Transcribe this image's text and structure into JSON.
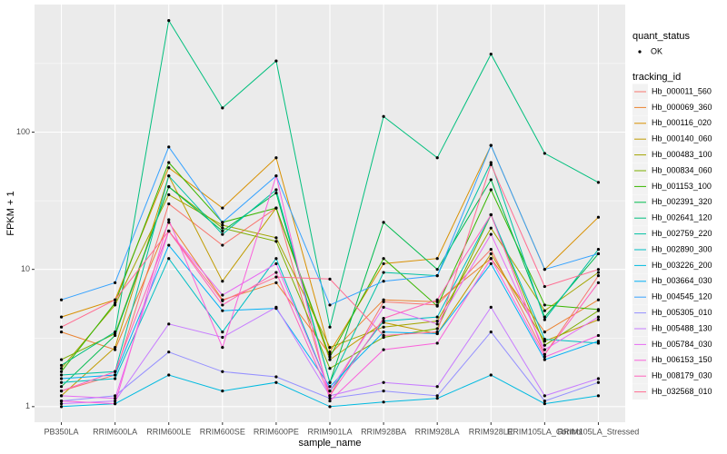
{
  "chart_data": {
    "type": "line",
    "x_label": "sample_name",
    "y_label": "FPKM + 1",
    "log_y": true,
    "grid": true,
    "legend_position": "right",
    "point_color": "#000000",
    "shape_legend": {
      "title": "quant_status",
      "labels": [
        "OK"
      ]
    },
    "color_legend_title": "tracking_id",
    "categories": [
      "PB350LA",
      "RRIM600LA",
      "RRIM600LE",
      "RRIM600SE",
      "RRIM600PE",
      "RRIM901LA",
      "RRIM928BA",
      "RRIM928LA",
      "RRIM928LE",
      "RRIM105LA_Control",
      "RRIM105LA_Stressed"
    ],
    "ylim": [
      0.77,
      850
    ],
    "yticks": [
      1,
      10,
      100
    ],
    "minor_yticks": [
      3.162,
      31.62,
      316.2
    ],
    "series": [
      {
        "name": "Hb_000011_560",
        "color": "#F8766D",
        "values": [
          1.3,
          1.7,
          30,
          15,
          28,
          1.2,
          5.8,
          5.5,
          14,
          2.4,
          9
        ]
      },
      {
        "name": "Hb_000069_360",
        "color": "#EA8331",
        "values": [
          3.5,
          2.6,
          22,
          6,
          8,
          2.4,
          6,
          5.8,
          12,
          3.5,
          6
        ]
      },
      {
        "name": "Hb_000116_020",
        "color": "#D89000",
        "values": [
          4.5,
          6,
          55,
          28,
          65,
          2.5,
          11,
          12,
          80,
          10,
          24
        ]
      },
      {
        "name": "Hb_000140_060",
        "color": "#C09B00",
        "values": [
          1.2,
          2.7,
          48,
          8.2,
          28,
          2.2,
          4.1,
          3.4,
          13,
          3,
          4.3
        ]
      },
      {
        "name": "Hb_000483_100",
        "color": "#A3A500",
        "values": [
          1.9,
          5.5,
          35,
          21,
          17,
          2.7,
          3.8,
          4.2,
          20,
          5,
          9.5
        ]
      },
      {
        "name": "Hb_000834_060",
        "color": "#7CAE00",
        "values": [
          2.2,
          3.4,
          40,
          20,
          16,
          1.9,
          3.2,
          3.7,
          25,
          2.8,
          5
        ]
      },
      {
        "name": "Hb_001153_100",
        "color": "#39B600",
        "values": [
          1.8,
          5.7,
          60,
          22,
          28,
          2.3,
          12,
          5.4,
          38,
          5.5,
          5.1
        ]
      },
      {
        "name": "Hb_002391_320",
        "color": "#00BB4E",
        "values": [
          1.4,
          3.3,
          40,
          19,
          36,
          1.5,
          22,
          10,
          45,
          4.5,
          13
        ]
      },
      {
        "name": "Hb_002641_120",
        "color": "#00BF7D",
        "values": [
          2,
          3.5,
          650,
          150,
          330,
          3.8,
          130,
          65,
          370,
          70,
          43
        ]
      },
      {
        "name": "Hb_002759_220",
        "color": "#00C1A3",
        "values": [
          1.7,
          1.8,
          48,
          18,
          38,
          1.5,
          9.5,
          9,
          60,
          4.3,
          14
        ]
      },
      {
        "name": "Hb_002890_300",
        "color": "#00BFC4",
        "values": [
          1.5,
          1.6,
          12,
          3.5,
          12,
          1.3,
          4.2,
          4.5,
          25,
          3.1,
          2.9
        ]
      },
      {
        "name": "Hb_003226_200",
        "color": "#00BAE0",
        "values": [
          1,
          1.05,
          1.7,
          1.3,
          1.5,
          1,
          1.08,
          1.15,
          1.7,
          1.05,
          1.2
        ]
      },
      {
        "name": "Hb_003664_030",
        "color": "#00B0F6",
        "values": [
          1.6,
          1.7,
          15,
          5,
          5.2,
          1.4,
          3.5,
          3.4,
          11,
          2.2,
          3
        ]
      },
      {
        "name": "Hb_004545_120",
        "color": "#35A2FF",
        "values": [
          6,
          8,
          78,
          22,
          48,
          5.5,
          8.2,
          9,
          80,
          10,
          13
        ]
      },
      {
        "name": "Hb_005305_010",
        "color": "#9590FF",
        "values": [
          1.1,
          1.2,
          2.5,
          1.8,
          1.65,
          1.15,
          1.3,
          1.2,
          3.5,
          1.1,
          1.5
        ]
      },
      {
        "name": "Hb_005488_130",
        "color": "#C77CFF",
        "values": [
          1.05,
          1.1,
          4,
          3.2,
          5.3,
          1.2,
          1.5,
          1.4,
          5.3,
          1.2,
          1.6
        ]
      },
      {
        "name": "Hb_005784_030",
        "color": "#E76BF3",
        "values": [
          1.2,
          1.15,
          19,
          6.5,
          11,
          1.3,
          5.3,
          4,
          18,
          2.6,
          4.5
        ]
      },
      {
        "name": "Hb_006153_150",
        "color": "#FA62DB",
        "values": [
          1.1,
          1.05,
          23,
          2.7,
          48,
          1.1,
          2.6,
          2.9,
          12,
          2.3,
          3.3
        ]
      },
      {
        "name": "Hb_008179_030",
        "color": "#FF62BC",
        "values": [
          1.3,
          1.8,
          19,
          5.5,
          9.5,
          1.2,
          4.4,
          6,
          25,
          2.4,
          8
        ]
      },
      {
        "name": "Hb_032568_010",
        "color": "#FF6C91",
        "values": [
          3.8,
          6,
          19,
          5.9,
          8.8,
          8.5,
          3.3,
          3.5,
          58,
          7.5,
          10
        ]
      }
    ]
  }
}
